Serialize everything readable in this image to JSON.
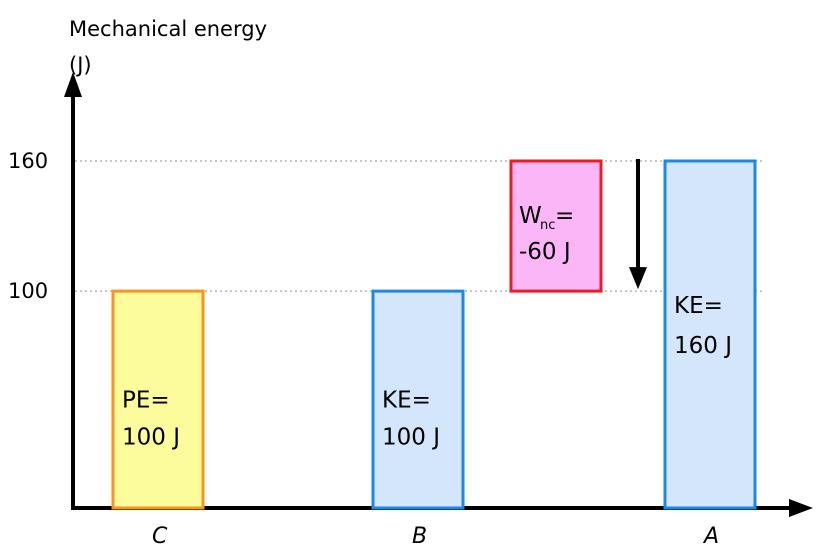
{
  "chart_data": {
    "type": "bar",
    "ylabel_line1": "Mechanical energy",
    "ylabel_line2": "(J)",
    "ylim": [
      0,
      190
    ],
    "yticks": [
      100,
      160
    ],
    "grid": "dotted lines at tick values",
    "categories": [
      "C",
      "B",
      "A"
    ],
    "bars": [
      {
        "category": "C",
        "bottom": 0,
        "top": 100,
        "label_line1": "PE=",
        "label_line2": "100 J",
        "fill": "#fcfc9c",
        "stroke": "#f7941d"
      },
      {
        "category": "B",
        "bottom": 0,
        "top": 100,
        "label_line1": "KE=",
        "label_line2": "100 J",
        "fill": "#d4e6fb",
        "stroke": "#1e88e5"
      },
      {
        "category": "A",
        "bottom": 0,
        "top": 160,
        "label_line1": "KE=",
        "label_line2": "160 J",
        "fill": "#d4e6fb",
        "stroke": "#1e88e5"
      }
    ],
    "work_box": {
      "between": [
        "B",
        "A"
      ],
      "bottom": 100,
      "top": 160,
      "label_main": "W",
      "label_sub": "nc",
      "label_eq": "=",
      "label_line2": "-60 J",
      "fill": "#fbb6f7",
      "stroke": "#ed1c24"
    },
    "arrow": {
      "from": 160,
      "to": 100,
      "direction": "down"
    }
  }
}
